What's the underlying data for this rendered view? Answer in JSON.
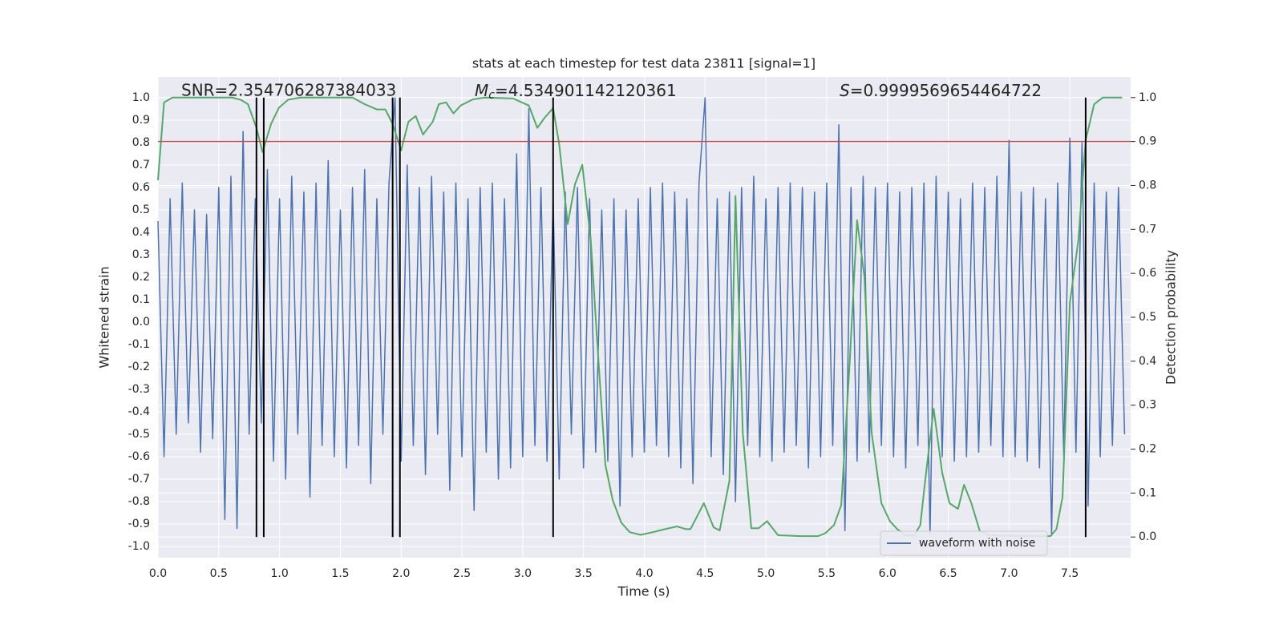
{
  "chart_data": {
    "type": "line",
    "title": "stats at each timestep for test data 23811 [signal=1]",
    "xlabel": "Time (s)",
    "ylabel": "Whitened strain",
    "y2label": "Detection probability",
    "xlim": [
      0,
      8.0
    ],
    "ylim": [
      -1.05,
      1.093
    ],
    "y2lim": [
      -0.047,
      1.047
    ],
    "xticks": [
      {
        "value": 0,
        "label": "0.0"
      },
      0.5,
      {
        "value": 1,
        "label": "1.0"
      },
      1.5,
      {
        "value": 2,
        "label": "2.0"
      },
      2.5,
      {
        "value": 3,
        "label": "3.0"
      },
      3.5,
      {
        "value": 4,
        "label": "4.0"
      },
      4.5,
      {
        "value": 5,
        "label": "5.0"
      },
      5.5,
      {
        "value": 6,
        "label": "6.0"
      },
      6.5,
      {
        "value": 7,
        "label": "7.0"
      },
      7.5
    ],
    "yticks": [
      {
        "value": -1,
        "label": "-1.0"
      },
      -0.9,
      -0.8,
      -0.7,
      -0.6,
      -0.5,
      -0.4,
      -0.3,
      -0.2,
      -0.1,
      {
        "value": 0,
        "label": "0.0"
      },
      0.1,
      0.2,
      0.3,
      0.4,
      0.5,
      0.6,
      0.7,
      0.8,
      0.9,
      {
        "value": 1,
        "label": "1.0"
      }
    ],
    "y2ticks": [
      {
        "value": 0,
        "label": "0.0"
      },
      0.1,
      0.2,
      0.3,
      0.4,
      0.5,
      0.6,
      0.7,
      0.8,
      0.9,
      {
        "value": 1,
        "label": "1.0"
      }
    ],
    "grid": true,
    "legend": "lower right",
    "annotations": [
      {
        "text": "SNR=2.354706287384033"
      },
      {
        "symbol": "M",
        "subscript": "c",
        "text": "=4.534901142120361"
      },
      {
        "symbol": "S",
        "text": "=0.9999569654464722"
      }
    ],
    "threshold": {
      "value": 0.9,
      "axis": "y2",
      "color": "#c44e52"
    },
    "vlines": {
      "x": [
        0.81,
        0.87,
        1.93,
        1.99,
        3.25,
        7.63
      ],
      "ymin": 0,
      "ymax": 1,
      "axis": "y2",
      "color": "#000000"
    },
    "series": [
      {
        "name": "waveform with noise",
        "color": "#4c72b0",
        "x": [
          0,
          0.05,
          0.1,
          0.15,
          0.2,
          0.25,
          0.3,
          0.35,
          0.4,
          0.45,
          0.5,
          0.55,
          0.6,
          0.65,
          0.7,
          0.75,
          0.8,
          0.85,
          0.9,
          0.95,
          1.0,
          1.05,
          1.1,
          1.15,
          1.2,
          1.25,
          1.3,
          1.35,
          1.4,
          1.45,
          1.5,
          1.55,
          1.6,
          1.65,
          1.7,
          1.75,
          1.8,
          1.85,
          1.9,
          1.95,
          2.0,
          2.05,
          2.1,
          2.15,
          2.2,
          2.25,
          2.3,
          2.35,
          2.4,
          2.45,
          2.5,
          2.55,
          2.6,
          2.65,
          2.7,
          2.75,
          2.8,
          2.85,
          2.9,
          2.95,
          3.0,
          3.05,
          3.1,
          3.15,
          3.2,
          3.25,
          3.3,
          3.35,
          3.4,
          3.45,
          3.5,
          3.55,
          3.6,
          3.65,
          3.7,
          3.75,
          3.8,
          3.85,
          3.9,
          3.95,
          4.0,
          4.05,
          4.1,
          4.15,
          4.2,
          4.25,
          4.3,
          4.35,
          4.4,
          4.45,
          4.5,
          4.55,
          4.6,
          4.65,
          4.7,
          4.75,
          4.8,
          4.85,
          4.9,
          4.95,
          5.0,
          5.05,
          5.1,
          5.15,
          5.2,
          5.25,
          5.3,
          5.35,
          5.4,
          5.45,
          5.5,
          5.55,
          5.6,
          5.65,
          5.7,
          5.75,
          5.8,
          5.85,
          5.9,
          5.95,
          6.0,
          6.05,
          6.1,
          6.15,
          6.2,
          6.25,
          6.3,
          6.35,
          6.4,
          6.45,
          6.5,
          6.55,
          6.6,
          6.65,
          6.7,
          6.75,
          6.8,
          6.85,
          6.9,
          6.95,
          7.0,
          7.05,
          7.1,
          7.15,
          7.2,
          7.25,
          7.3,
          7.35,
          7.4,
          7.45,
          7.5,
          7.55,
          7.6,
          7.65,
          7.7,
          7.75,
          7.8,
          7.85,
          7.9,
          7.95
        ],
        "values": [
          0.45,
          -0.6,
          0.55,
          -0.5,
          0.62,
          -0.45,
          0.5,
          -0.58,
          0.48,
          -0.52,
          0.6,
          -0.88,
          0.65,
          -0.92,
          0.85,
          -0.5,
          0.55,
          -0.45,
          0.68,
          -0.62,
          0.55,
          -0.7,
          0.65,
          -0.5,
          0.58,
          -0.78,
          0.62,
          -0.55,
          0.72,
          -0.6,
          0.5,
          -0.65,
          0.6,
          -0.55,
          0.68,
          -0.72,
          0.55,
          -0.5,
          0.62,
          1.0,
          -0.62,
          0.7,
          -0.55,
          0.6,
          -0.68,
          0.65,
          -0.5,
          0.58,
          -0.75,
          0.62,
          -0.6,
          0.55,
          -0.84,
          0.6,
          -0.58,
          0.62,
          -0.7,
          0.55,
          -0.65,
          0.75,
          -0.6,
          0.95,
          -0.55,
          0.6,
          -0.62,
          0.55,
          -0.7,
          0.58,
          -0.5,
          0.6,
          -0.65,
          0.55,
          -0.58,
          0.5,
          -0.62,
          0.55,
          -0.82,
          0.5,
          -0.6,
          0.55,
          -0.58,
          0.6,
          -0.55,
          0.62,
          -0.6,
          0.58,
          -0.65,
          0.55,
          -0.72,
          0.62,
          1.0,
          -0.6,
          0.55,
          -0.68,
          0.58,
          -0.8,
          0.6,
          -0.55,
          0.65,
          -0.6,
          0.55,
          -0.62,
          0.6,
          -0.58,
          0.62,
          -0.55,
          0.6,
          -0.65,
          0.58,
          -0.6,
          0.62,
          -0.55,
          0.88,
          -0.93,
          0.6,
          -0.62,
          0.65,
          -0.58,
          0.6,
          -0.55,
          0.62,
          -0.6,
          0.58,
          -0.65,
          0.6,
          -0.55,
          0.62,
          -0.95,
          0.65,
          -0.6,
          0.58,
          -0.62,
          0.55,
          -0.6,
          0.62,
          -0.58,
          0.6,
          -0.55,
          0.65,
          -0.6,
          0.81,
          -0.6,
          0.58,
          -0.62,
          0.6,
          -0.65,
          0.55,
          -0.95,
          0.62,
          -0.6,
          0.82,
          -0.58,
          0.8,
          -0.82,
          0.62,
          -0.6,
          0.58,
          -0.55,
          0.6,
          -0.5
        ]
      },
      {
        "color": "#55a868",
        "axis": "y2",
        "x": [
          0,
          0.05,
          0.12,
          0.61,
          0.68,
          0.74,
          0.81,
          0.86,
          0.93,
          0.995,
          1.07,
          1.17,
          1.6,
          1.7,
          1.8,
          1.87,
          1.93,
          2.0,
          2.06,
          2.12,
          2.18,
          2.26,
          2.31,
          2.37,
          2.43,
          2.49,
          2.59,
          2.69,
          2.92,
          3.05,
          3.12,
          3.18,
          3.25,
          3.3,
          3.37,
          3.43,
          3.49,
          3.56,
          3.61,
          3.68,
          3.74,
          3.81,
          3.88,
          3.97,
          4.07,
          4.17,
          4.27,
          4.34,
          4.38,
          4.49,
          4.57,
          4.62,
          4.7,
          4.75,
          4.81,
          4.88,
          4.94,
          5.01,
          5.1,
          5.29,
          5.43,
          5.49,
          5.56,
          5.62,
          5.69,
          5.75,
          5.81,
          5.87,
          5.95,
          6.02,
          6.08,
          6.15,
          6.22,
          6.27,
          6.31,
          6.38,
          6.45,
          6.51,
          6.58,
          6.63,
          6.69,
          6.76,
          6.84,
          7.07,
          7.34,
          7.39,
          7.44,
          7.5,
          7.57,
          7.63,
          7.7,
          7.77,
          7.93
        ],
        "values": [
          0.812,
          0.989,
          1.0,
          1.0,
          0.995,
          0.985,
          0.931,
          0.876,
          0.94,
          0.977,
          0.995,
          1.0,
          1.0,
          0.985,
          0.973,
          0.973,
          0.94,
          0.88,
          0.945,
          0.958,
          0.916,
          0.945,
          0.985,
          0.989,
          0.964,
          0.982,
          0.996,
          1.0,
          0.998,
          0.982,
          0.931,
          0.954,
          0.976,
          0.894,
          0.712,
          0.803,
          0.847,
          0.675,
          0.456,
          0.164,
          0.084,
          0.033,
          0.011,
          0.005,
          0.011,
          0.018,
          0.024,
          0.018,
          0.018,
          0.077,
          0.022,
          0.015,
          0.128,
          0.776,
          0.237,
          0.02,
          0.02,
          0.036,
          0.004,
          0.002,
          0.002,
          0.009,
          0.027,
          0.073,
          0.401,
          0.721,
          0.593,
          0.237,
          0.077,
          0.036,
          0.018,
          0.004,
          0.004,
          0.027,
          0.128,
          0.292,
          0.146,
          0.077,
          0.064,
          0.119,
          0.077,
          0.013,
          0.004,
          0.002,
          0.002,
          0.018,
          0.091,
          0.533,
          0.675,
          0.903,
          0.985,
          1.0,
          1.0
        ]
      }
    ]
  }
}
